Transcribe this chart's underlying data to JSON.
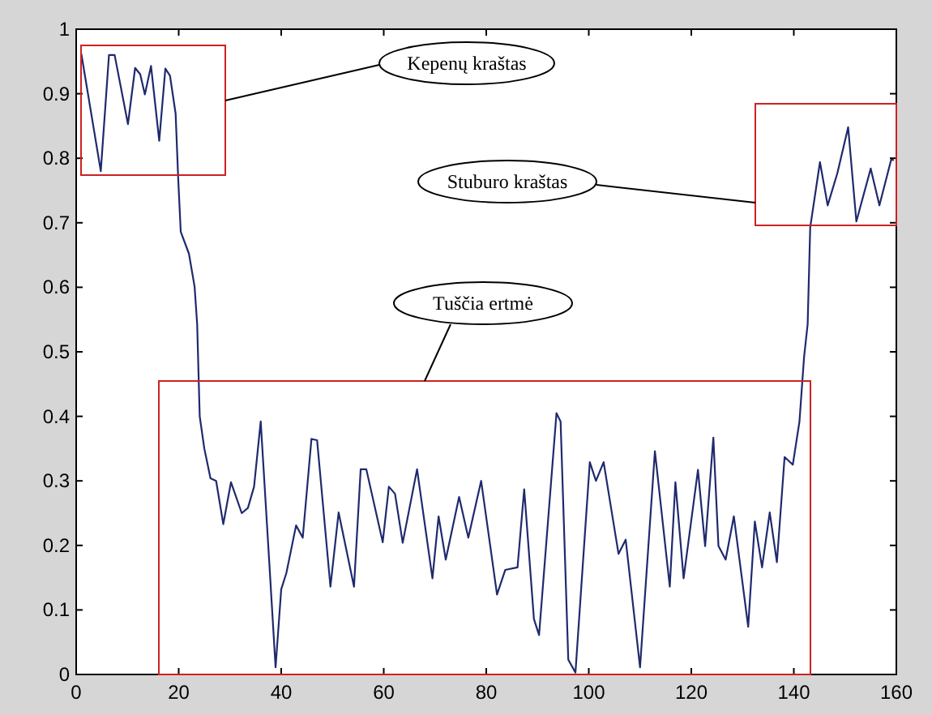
{
  "chart_data": {
    "type": "line",
    "x": [
      1,
      4.8,
      6.4,
      7.5,
      10.1,
      11.5,
      12.5,
      13.4,
      14.6,
      16.2,
      17.4,
      18.3,
      19.4,
      19.9,
      20.4,
      22,
      23.1,
      23.6,
      24.1,
      25,
      26.2,
      27.3,
      28.7,
      30.2,
      32.3,
      33.5,
      34.7,
      36,
      37.6,
      38.9,
      40,
      41,
      42.9,
      44.2,
      45.9,
      47,
      49.6,
      51.2,
      54.2,
      55.5,
      56.6,
      59.8,
      61,
      62.2,
      63.7,
      66.5,
      69.5,
      70.7,
      72.1,
      74.7,
      76.5,
      79,
      82.1,
      83.7,
      86.1,
      87.4,
      89.3,
      90.3,
      93.7,
      94.5,
      96,
      97.4,
      100.2,
      101.4,
      102.9,
      105.8,
      107.2,
      110,
      112.9,
      115.8,
      116.9,
      118.5,
      121.3,
      122.7,
      124.3,
      125.3,
      126.7,
      128.3,
      131.1,
      132.4,
      133.8,
      135.3,
      136.7,
      138.2,
      139.8,
      141.1,
      142,
      142.7,
      143.2,
      145.1,
      146.6,
      148.5,
      150.6,
      152.2,
      155,
      156.7,
      159,
      159.5
    ],
    "series": [
      {
        "color": "#1f2a6e",
        "values": [
          0.962,
          0.78,
          0.96,
          0.96,
          0.853,
          0.94,
          0.93,
          0.899,
          0.943,
          0.827,
          0.939,
          0.928,
          0.869,
          0.769,
          0.686,
          0.652,
          0.601,
          0.543,
          0.4,
          0.35,
          0.304,
          0.3,
          0.233,
          0.298,
          0.25,
          0.258,
          0.291,
          0.392,
          0.183,
          0.011,
          0.132,
          0.157,
          0.231,
          0.212,
          0.365,
          0.363,
          0.136,
          0.251,
          0.136,
          0.318,
          0.318,
          0.205,
          0.291,
          0.28,
          0.204,
          0.318,
          0.149,
          0.245,
          0.178,
          0.275,
          0.212,
          0.3,
          0.124,
          0.162,
          0.166,
          0.287,
          0.086,
          0.061,
          0.405,
          0.392,
          0.023,
          0.003,
          0.329,
          0.3,
          0.329,
          0.187,
          0.209,
          0.011,
          0.346,
          0.136,
          0.298,
          0.149,
          0.317,
          0.199,
          0.367,
          0.199,
          0.178,
          0.245,
          0.074,
          0.237,
          0.166,
          0.251,
          0.174,
          0.337,
          0.325,
          0.392,
          0.492,
          0.543,
          0.693,
          0.794,
          0.727,
          0.777,
          0.848,
          0.702,
          0.784,
          0.727,
          0.798,
          0.797
        ]
      }
    ],
    "xlim": [
      0,
      160
    ],
    "xticks": [
      0,
      20,
      40,
      60,
      80,
      100,
      120,
      140,
      160
    ],
    "ylim": [
      0,
      1
    ],
    "yticks": [
      0,
      0.1,
      0.2,
      0.3,
      0.4,
      0.5,
      0.6,
      0.7,
      0.8,
      0.9,
      1
    ],
    "annotations": [
      "Kepenų kraštas",
      "Stuburo kraštas",
      "Tuščia ertmė"
    ]
  }
}
